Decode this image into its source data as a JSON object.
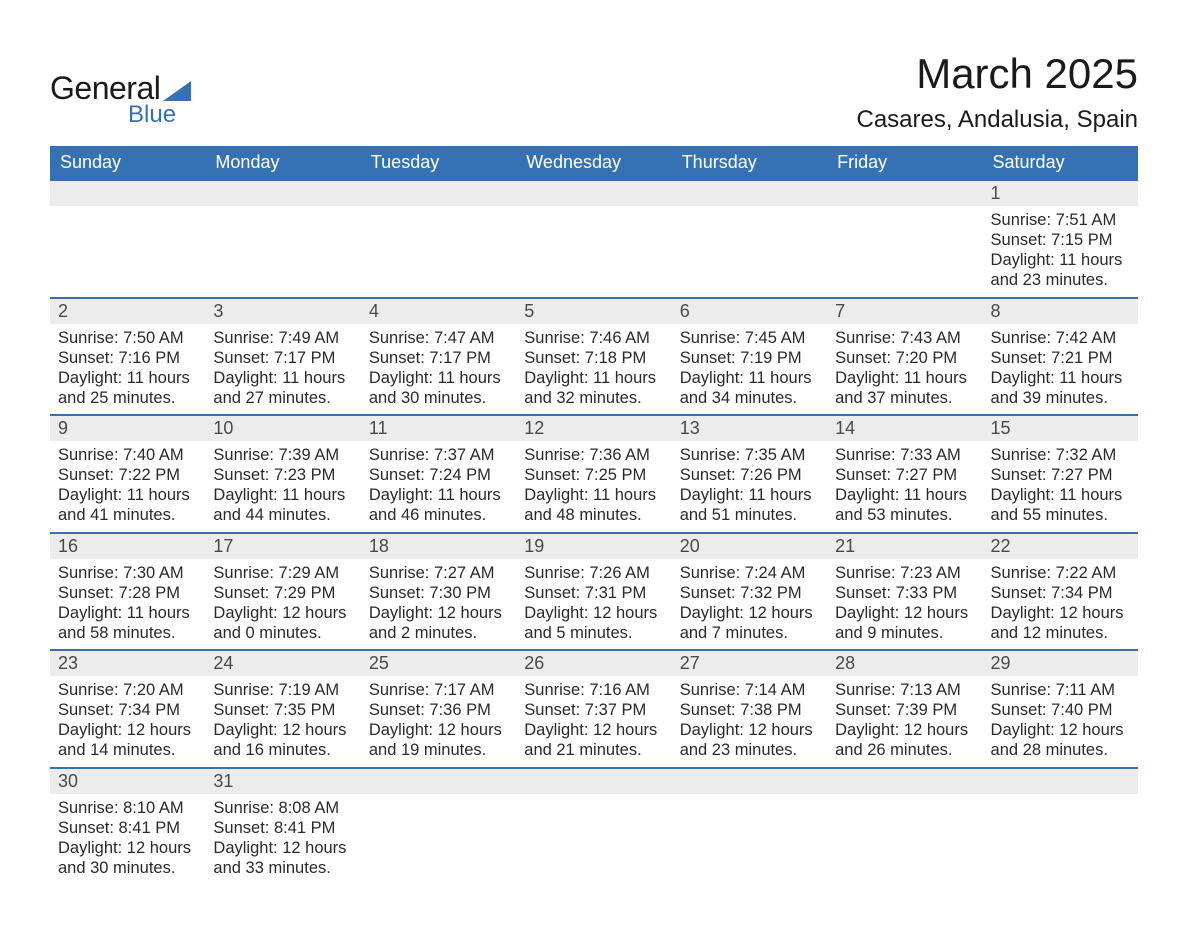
{
  "logo": {
    "text1": "General",
    "text2": "Blue"
  },
  "title": "March 2025",
  "location": "Casares, Andalusia, Spain",
  "colors": {
    "header_bg": "#3671b3",
    "header_text": "#ffffff",
    "daynum_bg": "#ececec",
    "border": "#3671b3",
    "text": "#2a2a2a"
  },
  "weekdays": [
    "Sunday",
    "Monday",
    "Tuesday",
    "Wednesday",
    "Thursday",
    "Friday",
    "Saturday"
  ],
  "weeks": [
    [
      null,
      null,
      null,
      null,
      null,
      null,
      {
        "n": "1",
        "sr": "Sunrise: 7:51 AM",
        "ss": "Sunset: 7:15 PM",
        "d1": "Daylight: 11 hours",
        "d2": "and 23 minutes."
      }
    ],
    [
      {
        "n": "2",
        "sr": "Sunrise: 7:50 AM",
        "ss": "Sunset: 7:16 PM",
        "d1": "Daylight: 11 hours",
        "d2": "and 25 minutes."
      },
      {
        "n": "3",
        "sr": "Sunrise: 7:49 AM",
        "ss": "Sunset: 7:17 PM",
        "d1": "Daylight: 11 hours",
        "d2": "and 27 minutes."
      },
      {
        "n": "4",
        "sr": "Sunrise: 7:47 AM",
        "ss": "Sunset: 7:17 PM",
        "d1": "Daylight: 11 hours",
        "d2": "and 30 minutes."
      },
      {
        "n": "5",
        "sr": "Sunrise: 7:46 AM",
        "ss": "Sunset: 7:18 PM",
        "d1": "Daylight: 11 hours",
        "d2": "and 32 minutes."
      },
      {
        "n": "6",
        "sr": "Sunrise: 7:45 AM",
        "ss": "Sunset: 7:19 PM",
        "d1": "Daylight: 11 hours",
        "d2": "and 34 minutes."
      },
      {
        "n": "7",
        "sr": "Sunrise: 7:43 AM",
        "ss": "Sunset: 7:20 PM",
        "d1": "Daylight: 11 hours",
        "d2": "and 37 minutes."
      },
      {
        "n": "8",
        "sr": "Sunrise: 7:42 AM",
        "ss": "Sunset: 7:21 PM",
        "d1": "Daylight: 11 hours",
        "d2": "and 39 minutes."
      }
    ],
    [
      {
        "n": "9",
        "sr": "Sunrise: 7:40 AM",
        "ss": "Sunset: 7:22 PM",
        "d1": "Daylight: 11 hours",
        "d2": "and 41 minutes."
      },
      {
        "n": "10",
        "sr": "Sunrise: 7:39 AM",
        "ss": "Sunset: 7:23 PM",
        "d1": "Daylight: 11 hours",
        "d2": "and 44 minutes."
      },
      {
        "n": "11",
        "sr": "Sunrise: 7:37 AM",
        "ss": "Sunset: 7:24 PM",
        "d1": "Daylight: 11 hours",
        "d2": "and 46 minutes."
      },
      {
        "n": "12",
        "sr": "Sunrise: 7:36 AM",
        "ss": "Sunset: 7:25 PM",
        "d1": "Daylight: 11 hours",
        "d2": "and 48 minutes."
      },
      {
        "n": "13",
        "sr": "Sunrise: 7:35 AM",
        "ss": "Sunset: 7:26 PM",
        "d1": "Daylight: 11 hours",
        "d2": "and 51 minutes."
      },
      {
        "n": "14",
        "sr": "Sunrise: 7:33 AM",
        "ss": "Sunset: 7:27 PM",
        "d1": "Daylight: 11 hours",
        "d2": "and 53 minutes."
      },
      {
        "n": "15",
        "sr": "Sunrise: 7:32 AM",
        "ss": "Sunset: 7:27 PM",
        "d1": "Daylight: 11 hours",
        "d2": "and 55 minutes."
      }
    ],
    [
      {
        "n": "16",
        "sr": "Sunrise: 7:30 AM",
        "ss": "Sunset: 7:28 PM",
        "d1": "Daylight: 11 hours",
        "d2": "and 58 minutes."
      },
      {
        "n": "17",
        "sr": "Sunrise: 7:29 AM",
        "ss": "Sunset: 7:29 PM",
        "d1": "Daylight: 12 hours",
        "d2": "and 0 minutes."
      },
      {
        "n": "18",
        "sr": "Sunrise: 7:27 AM",
        "ss": "Sunset: 7:30 PM",
        "d1": "Daylight: 12 hours",
        "d2": "and 2 minutes."
      },
      {
        "n": "19",
        "sr": "Sunrise: 7:26 AM",
        "ss": "Sunset: 7:31 PM",
        "d1": "Daylight: 12 hours",
        "d2": "and 5 minutes."
      },
      {
        "n": "20",
        "sr": "Sunrise: 7:24 AM",
        "ss": "Sunset: 7:32 PM",
        "d1": "Daylight: 12 hours",
        "d2": "and 7 minutes."
      },
      {
        "n": "21",
        "sr": "Sunrise: 7:23 AM",
        "ss": "Sunset: 7:33 PM",
        "d1": "Daylight: 12 hours",
        "d2": "and 9 minutes."
      },
      {
        "n": "22",
        "sr": "Sunrise: 7:22 AM",
        "ss": "Sunset: 7:34 PM",
        "d1": "Daylight: 12 hours",
        "d2": "and 12 minutes."
      }
    ],
    [
      {
        "n": "23",
        "sr": "Sunrise: 7:20 AM",
        "ss": "Sunset: 7:34 PM",
        "d1": "Daylight: 12 hours",
        "d2": "and 14 minutes."
      },
      {
        "n": "24",
        "sr": "Sunrise: 7:19 AM",
        "ss": "Sunset: 7:35 PM",
        "d1": "Daylight: 12 hours",
        "d2": "and 16 minutes."
      },
      {
        "n": "25",
        "sr": "Sunrise: 7:17 AM",
        "ss": "Sunset: 7:36 PM",
        "d1": "Daylight: 12 hours",
        "d2": "and 19 minutes."
      },
      {
        "n": "26",
        "sr": "Sunrise: 7:16 AM",
        "ss": "Sunset: 7:37 PM",
        "d1": "Daylight: 12 hours",
        "d2": "and 21 minutes."
      },
      {
        "n": "27",
        "sr": "Sunrise: 7:14 AM",
        "ss": "Sunset: 7:38 PM",
        "d1": "Daylight: 12 hours",
        "d2": "and 23 minutes."
      },
      {
        "n": "28",
        "sr": "Sunrise: 7:13 AM",
        "ss": "Sunset: 7:39 PM",
        "d1": "Daylight: 12 hours",
        "d2": "and 26 minutes."
      },
      {
        "n": "29",
        "sr": "Sunrise: 7:11 AM",
        "ss": "Sunset: 7:40 PM",
        "d1": "Daylight: 12 hours",
        "d2": "and 28 minutes."
      }
    ],
    [
      {
        "n": "30",
        "sr": "Sunrise: 8:10 AM",
        "ss": "Sunset: 8:41 PM",
        "d1": "Daylight: 12 hours",
        "d2": "and 30 minutes."
      },
      {
        "n": "31",
        "sr": "Sunrise: 8:08 AM",
        "ss": "Sunset: 8:41 PM",
        "d1": "Daylight: 12 hours",
        "d2": "and 33 minutes."
      },
      null,
      null,
      null,
      null,
      null
    ]
  ]
}
